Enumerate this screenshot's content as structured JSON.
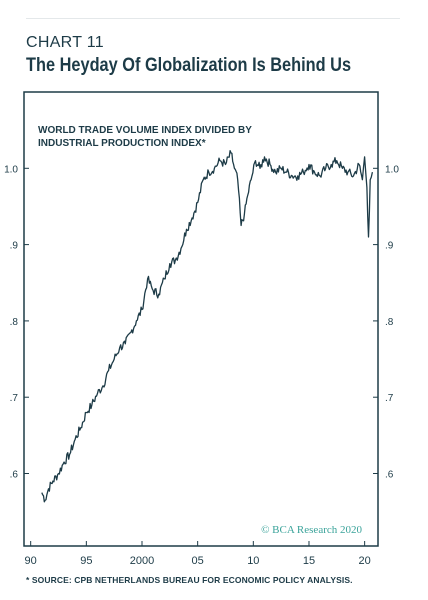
{
  "header": {
    "chart_number": "CHART 11",
    "title": "The Heyday Of Globalization Is Behind Us"
  },
  "footer": {
    "source": "* SOURCE: CPB NETHERLANDS BUREAU FOR ECONOMIC POLICY ANALYSIS.",
    "watermark": "© BCA Research 2020"
  },
  "chart_data": {
    "type": "line",
    "title": "",
    "inner_label_lines": [
      "WORLD TRADE VOLUME INDEX DIVIDED BY",
      "INDUSTRIAL PRODUCTION INDEX*"
    ],
    "xlabel": "",
    "ylabel": "",
    "x_ticks": [
      1990,
      1995,
      2000,
      2005,
      2010,
      2015,
      2020
    ],
    "x_tick_labels": [
      "90",
      "95",
      "2000",
      "05",
      "10",
      "15",
      "20"
    ],
    "xlim": [
      1989.4,
      2021.2
    ],
    "y_ticks": [
      0.6,
      0.7,
      0.8,
      0.9,
      1.0
    ],
    "y_tick_labels": [
      ".6",
      ".7",
      ".8",
      ".9",
      "1.0"
    ],
    "ylim": [
      0.505,
      1.1
    ],
    "grid": false,
    "line_color": "#1d3b47",
    "series": [
      {
        "x": [
          1991.0,
          1991.3,
          1991.6,
          1992.0,
          1992.5,
          1993.0,
          1993.5,
          1994.0,
          1994.5,
          1995.0,
          1995.5,
          1996.0,
          1996.5,
          1997.0,
          1997.5,
          1998.0,
          1998.5,
          1999.0,
          1999.5,
          2000.0,
          2000.5,
          2001.0,
          2001.5,
          2002.0,
          2002.5,
          2003.0,
          2003.5,
          2004.0,
          2004.5,
          2005.0,
          2005.5,
          2006.0,
          2006.5,
          2007.0,
          2007.5,
          2008.0,
          2008.3,
          2008.6,
          2008.9,
          2009.2,
          2009.5,
          2009.8,
          2010.2,
          2010.6,
          2011.0,
          2011.5,
          2012.0,
          2012.5,
          2013.0,
          2013.5,
          2014.0,
          2014.5,
          2015.0,
          2015.5,
          2016.0,
          2016.5,
          2017.0,
          2017.5,
          2018.0,
          2018.5,
          2019.0,
          2019.5,
          2019.8,
          2020.0,
          2020.2,
          2020.35,
          2020.5,
          2020.7
        ],
        "values": [
          0.575,
          0.565,
          0.58,
          0.59,
          0.6,
          0.615,
          0.625,
          0.645,
          0.66,
          0.68,
          0.69,
          0.705,
          0.715,
          0.735,
          0.75,
          0.765,
          0.77,
          0.785,
          0.8,
          0.815,
          0.855,
          0.84,
          0.835,
          0.855,
          0.875,
          0.88,
          0.895,
          0.92,
          0.935,
          0.955,
          0.985,
          0.995,
          1.0,
          1.01,
          1.005,
          1.02,
          1.0,
          0.985,
          0.925,
          0.94,
          0.965,
          0.985,
          1.01,
          1.0,
          1.015,
          1.005,
          0.995,
          1.0,
          0.995,
          0.99,
          0.99,
          0.995,
          1.005,
          0.995,
          0.99,
          1.0,
          1.005,
          1.01,
          1.0,
          0.995,
          0.99,
          1.005,
          0.985,
          1.015,
          0.975,
          0.91,
          0.985,
          0.995
        ]
      }
    ]
  }
}
